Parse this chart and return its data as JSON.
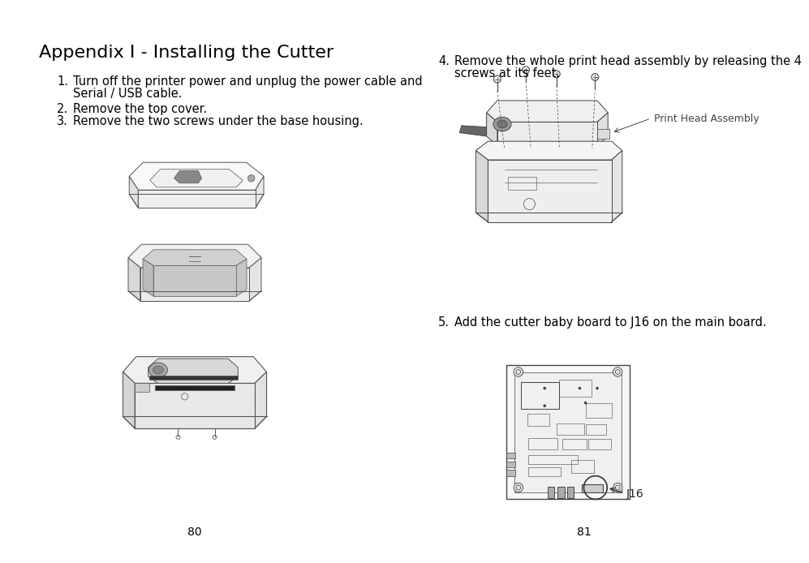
{
  "bg_color": "#ffffff",
  "title": "Appendix I - Installing the Cutter",
  "title_fontsize": 16,
  "left_items": [
    [
      "1.",
      "Turn off the printer power and unplug the power cable and\nSerial / USB cable."
    ],
    [
      "2.",
      "Remove the top cover."
    ],
    [
      "3.",
      "Remove the two screws under the base housing."
    ]
  ],
  "right_item4": [
    "4.",
    "Remove the whole print head assembly by releasing the 4\nscrews at its feet."
  ],
  "right_item5": [
    "5.",
    "Add the cutter baby board to J16 on the main board."
  ],
  "page_left": "80",
  "page_right": "81",
  "text_color": "#000000",
  "body_fontsize": 10.5,
  "num_indent": 0.055,
  "text_indent": 0.085
}
